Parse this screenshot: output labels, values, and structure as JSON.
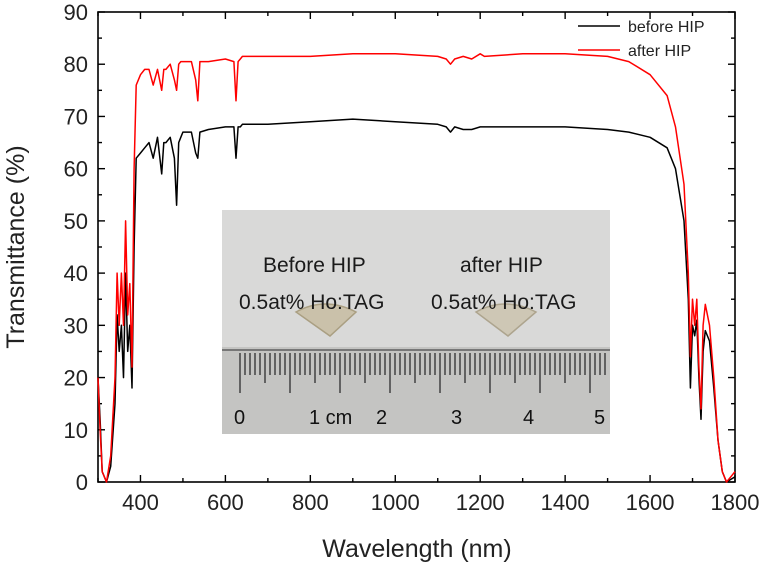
{
  "chart_data": {
    "type": "line",
    "title": "",
    "xlabel": "Wavelength (nm)",
    "ylabel": "Transmittance (%)",
    "xlim": [
      300,
      1800
    ],
    "ylim": [
      0,
      90
    ],
    "xticks": [
      "400",
      "600",
      "800",
      "1000",
      "1200",
      "1400",
      "1600",
      "1800"
    ],
    "yticks": [
      "0",
      "10",
      "20",
      "30",
      "40",
      "50",
      "60",
      "70",
      "80",
      "90"
    ],
    "grid": false,
    "legend_position": "top-right",
    "series": [
      {
        "name": "before HIP",
        "color": "#000000",
        "x": [
          300,
          305,
          310,
          320,
          330,
          340,
          345,
          350,
          355,
          360,
          365,
          370,
          375,
          380,
          385,
          390,
          400,
          410,
          420,
          430,
          440,
          450,
          455,
          460,
          470,
          480,
          485,
          490,
          495,
          500,
          520,
          530,
          535,
          540,
          560,
          600,
          620,
          625,
          630,
          635,
          640,
          700,
          800,
          900,
          1000,
          1100,
          1120,
          1130,
          1140,
          1160,
          1180,
          1200,
          1210,
          1300,
          1400,
          1500,
          1550,
          1600,
          1640,
          1660,
          1680,
          1690,
          1695,
          1700,
          1705,
          1710,
          1715,
          1720,
          1725,
          1730,
          1740,
          1750,
          1760,
          1770,
          1780,
          1790,
          1800
        ],
        "y": [
          20,
          12,
          2,
          0,
          3,
          15,
          32,
          25,
          30,
          20,
          40,
          25,
          30,
          18,
          45,
          62,
          63,
          64,
          65,
          62,
          66,
          59,
          65,
          65,
          66,
          62,
          53,
          65,
          66,
          67,
          67,
          63,
          62,
          67,
          67.5,
          68,
          68,
          62,
          68,
          68,
          68.5,
          68.5,
          69,
          69.5,
          69,
          68.5,
          68,
          67,
          68,
          67.5,
          67.5,
          68,
          68,
          68,
          68,
          67.5,
          67,
          66,
          64,
          60,
          50,
          35,
          18,
          30,
          28,
          31,
          20,
          12,
          25,
          29,
          27,
          18,
          8,
          2,
          0,
          0.5,
          1
        ]
      },
      {
        "name": "after HIP",
        "color": "#ff0000",
        "x": [
          300,
          305,
          310,
          320,
          330,
          340,
          345,
          350,
          355,
          360,
          365,
          370,
          375,
          380,
          385,
          390,
          400,
          410,
          420,
          430,
          440,
          450,
          455,
          460,
          470,
          480,
          485,
          490,
          495,
          500,
          520,
          530,
          535,
          540,
          560,
          600,
          620,
          625,
          630,
          635,
          640,
          700,
          800,
          900,
          1000,
          1100,
          1120,
          1130,
          1140,
          1160,
          1180,
          1200,
          1210,
          1300,
          1400,
          1500,
          1550,
          1600,
          1640,
          1660,
          1680,
          1690,
          1695,
          1700,
          1705,
          1710,
          1715,
          1720,
          1725,
          1730,
          1740,
          1750,
          1760,
          1770,
          1780,
          1790,
          1800
        ],
        "y": [
          20,
          10,
          2,
          0,
          5,
          20,
          40,
          30,
          40,
          30,
          50,
          32,
          38,
          22,
          60,
          76,
          78,
          79,
          79,
          76,
          79,
          75,
          79,
          79,
          80,
          77,
          75,
          80,
          80.5,
          80.5,
          80.5,
          77,
          73,
          80.5,
          80.5,
          81,
          80.5,
          73,
          80.5,
          81,
          81.5,
          81.5,
          81.5,
          82,
          82,
          81.5,
          81,
          80,
          81,
          81.5,
          81,
          82,
          81.5,
          82,
          82,
          81.5,
          80.5,
          78,
          74,
          68,
          57,
          40,
          24,
          35,
          30,
          35,
          22,
          14,
          30,
          34,
          30,
          20,
          8,
          2,
          0,
          1,
          2
        ]
      }
    ]
  },
  "inset_photo": {
    "before_title": "Before HIP",
    "after_title": "after HIP",
    "sample_label_before": "0.5at% Ho:TAG",
    "sample_label_after": "0.5at% Ho:TAG",
    "ruler_labels": [
      "0",
      "1 cm",
      "2",
      "3",
      "4",
      "5"
    ]
  }
}
